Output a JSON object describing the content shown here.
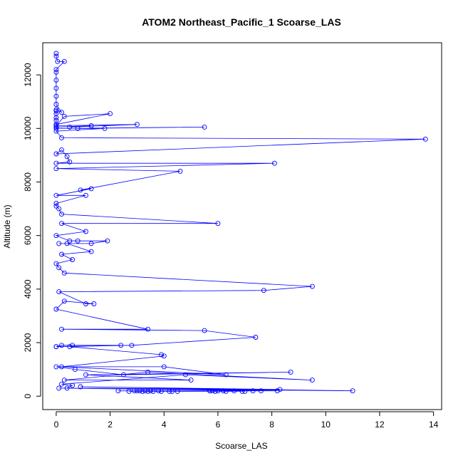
{
  "chart_data": {
    "type": "line",
    "title": "ATOM2 Northeast_Pacific_1 Scoarse_LAS",
    "xlabel": "Scoarse_LAS",
    "ylabel": "Altitude (m)",
    "xlim": [
      -0.5,
      14.3
    ],
    "ylim": [
      -500,
      13200
    ],
    "x_ticks": [
      0,
      2,
      4,
      6,
      8,
      10,
      12,
      14
    ],
    "y_ticks": [
      0,
      2000,
      4000,
      6000,
      8000,
      10000,
      12000
    ],
    "grid": false,
    "markers": "open-circle",
    "color": "#0000ff",
    "series": [
      {
        "x": [
          0,
          0,
          0.05,
          0.3,
          0,
          0,
          0,
          0,
          0,
          0,
          0.2,
          0,
          0,
          0,
          0,
          0,
          0,
          2.0,
          0.3,
          0,
          3.0,
          0.5,
          1.3,
          0,
          0,
          5.5,
          0.8,
          1.8,
          0,
          0.2,
          13.7,
          0,
          0.2,
          0.4,
          0.5,
          0,
          8.1,
          0,
          4.6,
          0.9,
          1.3,
          0,
          1.1,
          0,
          0,
          0.1,
          0.2,
          6.0,
          0.2,
          1.1,
          0,
          0.5,
          0.8,
          1.9,
          1.3,
          0.1,
          0.4,
          1.3,
          0.2,
          0.6,
          0,
          0.1,
          0.3,
          9.5,
          7.7,
          0.1,
          1.1,
          1.4,
          0.3,
          0,
          3.4,
          0.2,
          5.5,
          7.4,
          2.8,
          0,
          0,
          0.2,
          0.6,
          2.4,
          0.5,
          3.9,
          4.0,
          0.2,
          6.3,
          4.0,
          0,
          0.7,
          2.5,
          8.7,
          1.1,
          5.0,
          0.3,
          3.4,
          9.5,
          4.8,
          0.2,
          0.6,
          0.4,
          11.0,
          0.9,
          8.3,
          0.1,
          8.2,
          7.6,
          4.5,
          7.3,
          3.6,
          7.0,
          2.3,
          6.9,
          3.8,
          6.6,
          3.5,
          6.3,
          3.2,
          6.2,
          3.0,
          6.0,
          2.9,
          5.9,
          2.7,
          5.7,
          4.2,
          5.8,
          4.3,
          5.7,
          3.9,
          5.7,
          3.4,
          3.3,
          3.1
        ],
        "y": [
          12800,
          12700,
          12500,
          12500,
          12200,
          12100,
          11800,
          11500,
          11200,
          10900,
          10600,
          10700,
          10650,
          10550,
          10400,
          10300,
          10150,
          10550,
          10450,
          10100,
          10150,
          10050,
          10100,
          10050,
          10000,
          10050,
          10000,
          10000,
          9900,
          9650,
          9600,
          9050,
          9200,
          8950,
          8750,
          8700,
          8700,
          8500,
          8400,
          7700,
          7750,
          7500,
          7500,
          7200,
          7100,
          7000,
          6800,
          6450,
          6450,
          6150,
          6000,
          5800,
          5800,
          5800,
          5700,
          5700,
          5700,
          5400,
          5300,
          5100,
          4950,
          4800,
          4600,
          4100,
          3950,
          3900,
          3450,
          3450,
          3550,
          3250,
          2500,
          2500,
          2450,
          2200,
          1900,
          1850,
          1850,
          1900,
          1900,
          1900,
          1850,
          1550,
          1500,
          1100,
          800,
          1100,
          1100,
          1000,
          800,
          900,
          800,
          600,
          600,
          900,
          600,
          800,
          450,
          400,
          300,
          200,
          350,
          250,
          300,
          200,
          200,
          180,
          200,
          180,
          180,
          200,
          180,
          200,
          200,
          200,
          180,
          180,
          200,
          200,
          200,
          200,
          180,
          180,
          200,
          180,
          200,
          180,
          200,
          180,
          200,
          180,
          200,
          200
        ]
      }
    ]
  }
}
